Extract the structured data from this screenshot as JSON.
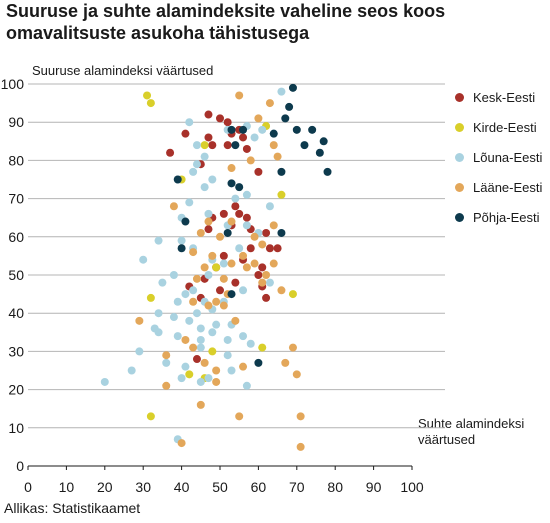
{
  "title": "Suuruse ja suhte alamindeksite vaheline seos koos omavalitsuste asukoha tähistusega",
  "source": "Allikas: Statistikaamet",
  "chart_data": {
    "type": "scatter",
    "title": "Suuruse ja suhte alamindeksite vaheline seos koos omavalitsuste asukoha tähistusega",
    "ylabel": "Suuruse alamindeksi väärtused",
    "xlabel": "Suhte alamindeksi väärtused",
    "xlim": [
      0,
      100
    ],
    "ylim": [
      0,
      100
    ],
    "xticks": [
      "0",
      "10",
      "20",
      "30",
      "40",
      "50",
      "60",
      "70",
      "80",
      "90",
      "100"
    ],
    "yticks": [
      "0",
      "10",
      "20",
      "30",
      "40",
      "50",
      "60",
      "70",
      "80",
      "90",
      "100"
    ],
    "grid": "horizontal",
    "legend_position": "right",
    "series": [
      {
        "name": "Kesk-Eesti",
        "color": "#a8312a",
        "points": [
          [
            47,
            92
          ],
          [
            41,
            87
          ],
          [
            37,
            82
          ],
          [
            47,
            86
          ],
          [
            48,
            84
          ],
          [
            50,
            91
          ],
          [
            52,
            90
          ],
          [
            53,
            87
          ],
          [
            55,
            88
          ],
          [
            56,
            86
          ],
          [
            57,
            83
          ],
          [
            52,
            84
          ],
          [
            45,
            79
          ],
          [
            60,
            77
          ],
          [
            54,
            68
          ],
          [
            51,
            66
          ],
          [
            55,
            66
          ],
          [
            48,
            65
          ],
          [
            57,
            65
          ],
          [
            53,
            63
          ],
          [
            58,
            62
          ],
          [
            47,
            62
          ],
          [
            62,
            61
          ],
          [
            63,
            57
          ],
          [
            65,
            57
          ],
          [
            51,
            55
          ],
          [
            56,
            54
          ],
          [
            49,
            52
          ],
          [
            60,
            50
          ],
          [
            61,
            52
          ],
          [
            46,
            49
          ],
          [
            54,
            48
          ],
          [
            50,
            46
          ],
          [
            61,
            47
          ],
          [
            45,
            44
          ],
          [
            42,
            47
          ],
          [
            62,
            44
          ],
          [
            44,
            28
          ],
          [
            58,
            57
          ]
        ]
      },
      {
        "name": "Kirde-Eesti",
        "color": "#d9cf2a",
        "points": [
          [
            31,
            97
          ],
          [
            32,
            95
          ],
          [
            46,
            84
          ],
          [
            40,
            75
          ],
          [
            62,
            89
          ],
          [
            66,
            71
          ],
          [
            69,
            45
          ],
          [
            32,
            44
          ],
          [
            49,
            52
          ],
          [
            61,
            31
          ],
          [
            48,
            30
          ],
          [
            42,
            24
          ],
          [
            46,
            23
          ],
          [
            32,
            13
          ]
        ]
      },
      {
        "name": "Lõuna-Eesti",
        "color": "#a9d2e0",
        "points": [
          [
            66,
            98
          ],
          [
            42,
            90
          ],
          [
            57,
            89
          ],
          [
            61,
            88
          ],
          [
            59,
            86
          ],
          [
            64,
            87
          ],
          [
            52,
            88
          ],
          [
            44,
            84
          ],
          [
            46,
            81
          ],
          [
            44,
            79
          ],
          [
            43,
            77
          ],
          [
            48,
            75
          ],
          [
            39,
            75
          ],
          [
            46,
            73
          ],
          [
            57,
            71
          ],
          [
            54,
            70
          ],
          [
            63,
            68
          ],
          [
            42,
            69
          ],
          [
            47,
            66
          ],
          [
            40,
            65
          ],
          [
            52,
            63
          ],
          [
            57,
            63
          ],
          [
            60,
            61
          ],
          [
            34,
            59
          ],
          [
            40,
            59
          ],
          [
            43,
            57
          ],
          [
            55,
            57
          ],
          [
            30,
            54
          ],
          [
            48,
            54
          ],
          [
            51,
            53
          ],
          [
            35,
            48
          ],
          [
            38,
            50
          ],
          [
            47,
            50
          ],
          [
            63,
            48
          ],
          [
            56,
            46
          ],
          [
            41,
            45
          ],
          [
            43,
            46
          ],
          [
            46,
            43
          ],
          [
            51,
            43
          ],
          [
            39,
            43
          ],
          [
            34,
            40
          ],
          [
            44,
            40
          ],
          [
            48,
            41
          ],
          [
            38,
            39
          ],
          [
            42,
            38
          ],
          [
            45,
            36
          ],
          [
            49,
            37
          ],
          [
            53,
            37
          ],
          [
            33,
            36
          ],
          [
            39,
            34
          ],
          [
            45,
            33
          ],
          [
            48,
            35
          ],
          [
            52,
            33
          ],
          [
            56,
            34
          ],
          [
            34,
            35
          ],
          [
            45,
            31
          ],
          [
            58,
            32
          ],
          [
            29,
            30
          ],
          [
            41,
            26
          ],
          [
            53,
            25
          ],
          [
            40,
            23
          ],
          [
            47,
            23
          ],
          [
            27,
            25
          ],
          [
            20,
            22
          ],
          [
            36,
            27
          ],
          [
            39,
            7
          ],
          [
            45,
            22
          ],
          [
            52,
            29
          ],
          [
            57,
            21
          ]
        ]
      },
      {
        "name": "Lääne-Eesti",
        "color": "#e3a75a",
        "points": [
          [
            55,
            97
          ],
          [
            63,
            95
          ],
          [
            60,
            91
          ],
          [
            64,
            84
          ],
          [
            65,
            81
          ],
          [
            58,
            80
          ],
          [
            53,
            78
          ],
          [
            38,
            68
          ],
          [
            47,
            64
          ],
          [
            53,
            64
          ],
          [
            64,
            63
          ],
          [
            45,
            61
          ],
          [
            50,
            60
          ],
          [
            59,
            60
          ],
          [
            61,
            58
          ],
          [
            43,
            56
          ],
          [
            48,
            55
          ],
          [
            53,
            53
          ],
          [
            56,
            55
          ],
          [
            59,
            53
          ],
          [
            64,
            53
          ],
          [
            57,
            52
          ],
          [
            62,
            50
          ],
          [
            46,
            52
          ],
          [
            44,
            49
          ],
          [
            51,
            49
          ],
          [
            61,
            48
          ],
          [
            66,
            46
          ],
          [
            52,
            45
          ],
          [
            43,
            43
          ],
          [
            47,
            42
          ],
          [
            49,
            43
          ],
          [
            51,
            42
          ],
          [
            54,
            38
          ],
          [
            29,
            38
          ],
          [
            41,
            33
          ],
          [
            43,
            31
          ],
          [
            36,
            29
          ],
          [
            46,
            27
          ],
          [
            49,
            25
          ],
          [
            56,
            26
          ],
          [
            67,
            27
          ],
          [
            69,
            31
          ],
          [
            70,
            24
          ],
          [
            36,
            21
          ],
          [
            49,
            22
          ],
          [
            45,
            16
          ],
          [
            55,
            13
          ],
          [
            71,
            13
          ],
          [
            40,
            6
          ],
          [
            71,
            5
          ]
        ]
      },
      {
        "name": "Põhja-Eesti",
        "color": "#0d3a4d",
        "points": [
          [
            69,
            99
          ],
          [
            68,
            94
          ],
          [
            67,
            91
          ],
          [
            64,
            87
          ],
          [
            70,
            88
          ],
          [
            74,
            88
          ],
          [
            77,
            85
          ],
          [
            72,
            84
          ],
          [
            76,
            82
          ],
          [
            78,
            77
          ],
          [
            66,
            77
          ],
          [
            54,
            84
          ],
          [
            56,
            88
          ],
          [
            53,
            88
          ],
          [
            53,
            74
          ],
          [
            55,
            73
          ],
          [
            39,
            75
          ],
          [
            41,
            64
          ],
          [
            52,
            61
          ],
          [
            66,
            61
          ],
          [
            40,
            57
          ],
          [
            53,
            45
          ],
          [
            60,
            27
          ]
        ]
      }
    ]
  }
}
